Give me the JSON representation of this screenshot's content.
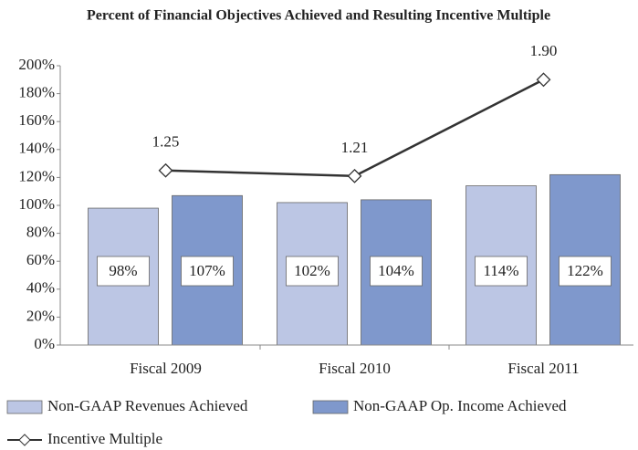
{
  "chart_data": {
    "type": "bar",
    "title": "Percent of Financial Objectives Achieved and Resulting Incentive Multiple",
    "categories": [
      "Fiscal 2009",
      "Fiscal 2010",
      "Fiscal 2011"
    ],
    "series": [
      {
        "name": "Non-GAAP Revenues Achieved",
        "color": "#bcc6e4",
        "values": [
          98,
          102,
          114
        ],
        "value_labels": [
          "98%",
          "102%",
          "114%"
        ]
      },
      {
        "name": "Non-GAAP Op. Income Achieved",
        "color": "#7f98cc",
        "values": [
          107,
          104,
          122
        ],
        "value_labels": [
          "107%",
          "104%",
          "122%"
        ]
      },
      {
        "name": "Incentive Multiple",
        "type": "line",
        "color": "#333333",
        "axis": "y2",
        "values": [
          1.25,
          1.21,
          1.9
        ],
        "value_labels": [
          "1.25",
          "1.21",
          "1.90"
        ]
      }
    ],
    "ylim": [
      0,
      200
    ],
    "yticks": [
      {
        "value": 0,
        "label": "0%"
      },
      {
        "value": 20,
        "label": "20%"
      },
      {
        "value": 40,
        "label": "40%"
      },
      {
        "value": 60,
        "label": "60%"
      },
      {
        "value": 80,
        "label": "80%"
      },
      {
        "value": 100,
        "label": "100%"
      },
      {
        "value": 120,
        "label": "120%"
      },
      {
        "value": 140,
        "label": "140%"
      },
      {
        "value": 160,
        "label": "160%"
      },
      {
        "value": 180,
        "label": "180%"
      },
      {
        "value": 200,
        "label": "200%"
      }
    ],
    "y2lim": [
      0,
      2
    ],
    "grid": false
  }
}
